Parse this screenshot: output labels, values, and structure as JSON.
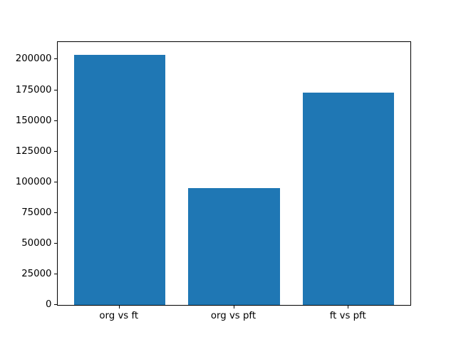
{
  "chart_data": {
    "type": "bar",
    "title": "",
    "xlabel": "",
    "ylabel": "",
    "categories": [
      "org vs ft",
      "org vs pft",
      "ft vs pft"
    ],
    "values": [
      204000,
      95000,
      173000
    ],
    "yticks": [
      0,
      25000,
      50000,
      75000,
      100000,
      125000,
      150000,
      175000,
      200000
    ],
    "ylim": [
      0,
      214200
    ],
    "bar_color": "#1f77b4",
    "axis_color": "#000000",
    "background_color": "#ffffff",
    "grid": false,
    "legend": null
  }
}
